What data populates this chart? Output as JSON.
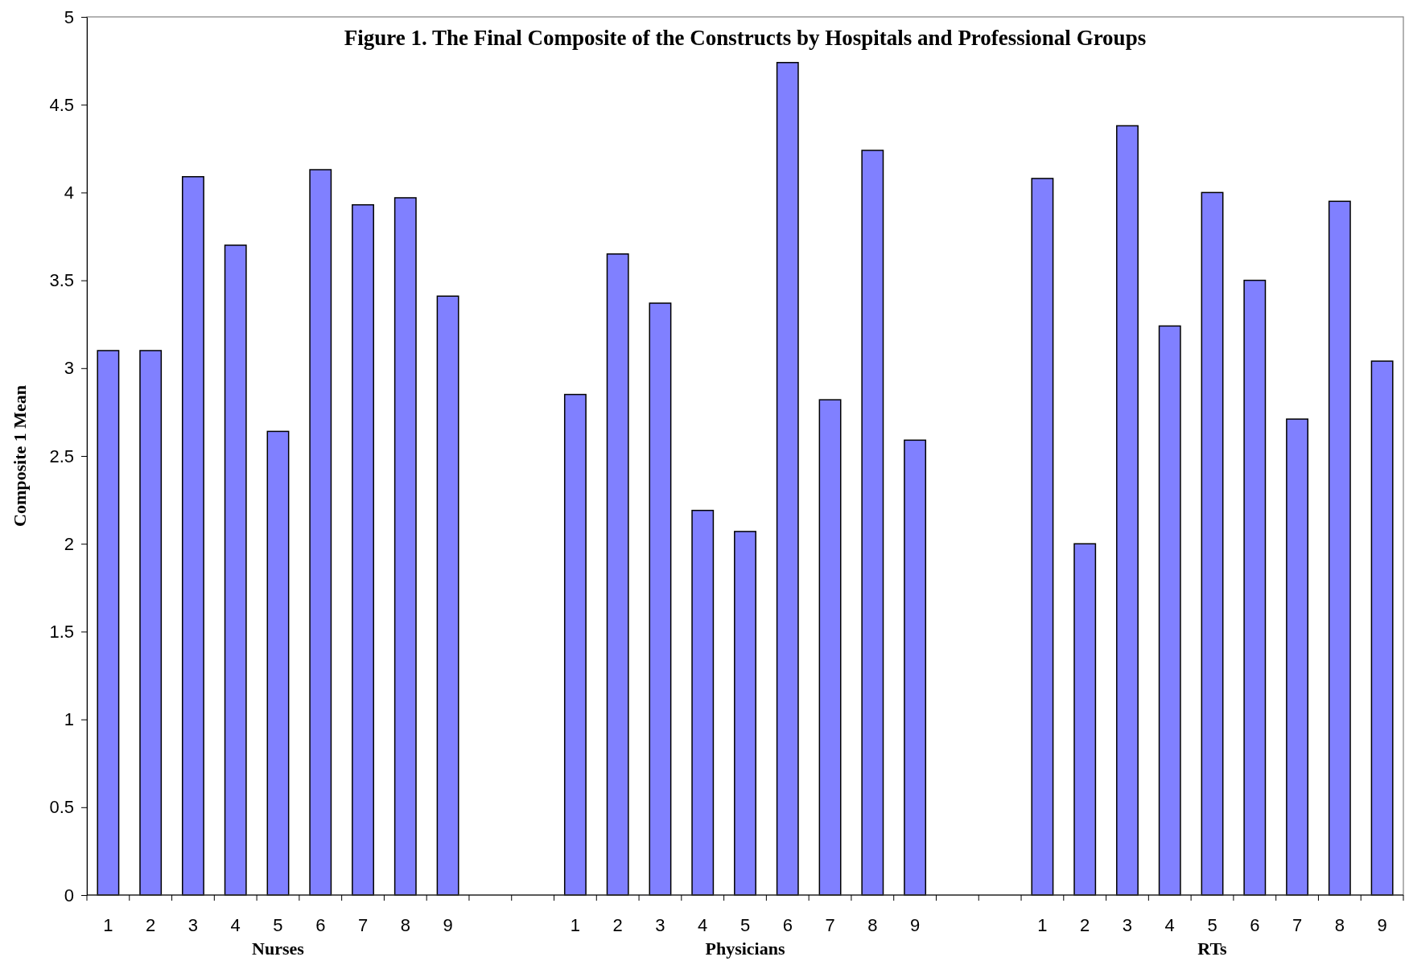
{
  "chart_data": {
    "type": "bar",
    "title": "Figure 1.  The Final Composite of the Constructs by Hospitals and Professional Groups",
    "ylabel": "Composite 1 Mean",
    "categories": [
      "1",
      "2",
      "3",
      "4",
      "5",
      "6",
      "7",
      "8",
      "9",
      null,
      null,
      "1",
      "2",
      "3",
      "4",
      "5",
      "6",
      "7",
      "8",
      "9",
      null,
      null,
      "1",
      "2",
      "3",
      "4",
      "5",
      "6",
      "7",
      "8",
      "9"
    ],
    "values": [
      3.1,
      3.1,
      4.09,
      3.7,
      2.64,
      4.13,
      3.93,
      3.97,
      3.41,
      null,
      null,
      2.85,
      3.65,
      3.37,
      2.19,
      2.07,
      4.74,
      2.82,
      4.24,
      2.59,
      null,
      null,
      4.08,
      2.0,
      4.38,
      3.24,
      4.0,
      3.5,
      2.71,
      3.95,
      3.04
    ],
    "color": "#8080ff",
    "ylim": [
      0,
      5
    ],
    "yticks": [
      0,
      0.5,
      1,
      1.5,
      2,
      2.5,
      3,
      3.5,
      4,
      4.5,
      5
    ],
    "grid": false,
    "annotations": [
      "Nurses",
      "Physicians",
      "RTs"
    ]
  }
}
